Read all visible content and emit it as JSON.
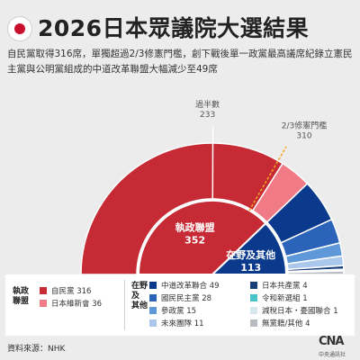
{
  "header": {
    "title": "2026日本眾議院大選結果",
    "subtitle": "自民黨取得316席，單獨超過2/3修憲門檻，創下戰後單一政黨最高議席紀錄立憲民主黨與公明黨組成的中道改革聯盟大幅減少至49席"
  },
  "chart_data": {
    "type": "pie",
    "subtype": "semicircle-parliament",
    "total": 465,
    "annotations": [
      {
        "label": "過半數",
        "value": 233
      },
      {
        "label": "2/3修憲門檻",
        "value": 310
      }
    ],
    "groups": [
      {
        "name": "執政聯盟",
        "total": 352,
        "color": "#c62a34"
      },
      {
        "name": "在野及其他",
        "total": 113,
        "color": "#0b3a8c"
      }
    ],
    "series": [
      {
        "name": "自民黨",
        "value": 316,
        "color": "#c62a34",
        "group": "執政聯盟"
      },
      {
        "name": "日本維新會",
        "value": 36,
        "color": "#f07a86",
        "group": "執政聯盟"
      },
      {
        "name": "中道改革聯合",
        "value": 49,
        "color": "#0b3a8c",
        "group": "在野及其他"
      },
      {
        "name": "國民民主黨",
        "value": 28,
        "color": "#2b63b8",
        "group": "在野及其他"
      },
      {
        "name": "參政黨",
        "value": 15,
        "color": "#5f98d8",
        "group": "在野及其他"
      },
      {
        "name": "未來團隊",
        "value": 11,
        "color": "#a9c8ec",
        "group": "在野及其他"
      },
      {
        "name": "日本共產黨",
        "value": 4,
        "color": "#173f78",
        "group": "在野及其他"
      },
      {
        "name": "令和新選組",
        "value": 1,
        "color": "#48c4c8",
        "group": "在野及其他"
      },
      {
        "name": "減稅日本・憂國聯合",
        "value": 1,
        "color": "#d8e6f0",
        "group": "在野及其他"
      },
      {
        "name": "無黨籍/其他",
        "value": 4,
        "color": "#b8bcc2",
        "group": "在野及其他"
      }
    ]
  },
  "legend": {
    "ruling_title": "執政\n聯盟",
    "opposition_title": "在野\n及\n其他",
    "ruling_items": [
      {
        "label": "自民黨 316",
        "color": "#c62a34"
      },
      {
        "label": "日本維新會 36",
        "color": "#f07a86"
      }
    ],
    "opposition_items": [
      {
        "label": "中道改革聯合 49",
        "color": "#0b3a8c"
      },
      {
        "label": "國民民主黨 28",
        "color": "#2b63b8"
      },
      {
        "label": "參政黨 15",
        "color": "#5f98d8"
      },
      {
        "label": "未來團隊 11",
        "color": "#a9c8ec"
      },
      {
        "label": "日本共產黨 4",
        "color": "#173f78"
      },
      {
        "label": "令和新選組 1",
        "color": "#48c4c8"
      },
      {
        "label": "減稅日本・憂國聯合 1",
        "color": "#d8e6f0"
      },
      {
        "label": "無黨籍/其他 4",
        "color": "#b8bcc2"
      }
    ]
  },
  "footer": {
    "source": "資料來源：NHK",
    "logo_mark": "CNA",
    "logo_text": "中央通訊社"
  }
}
